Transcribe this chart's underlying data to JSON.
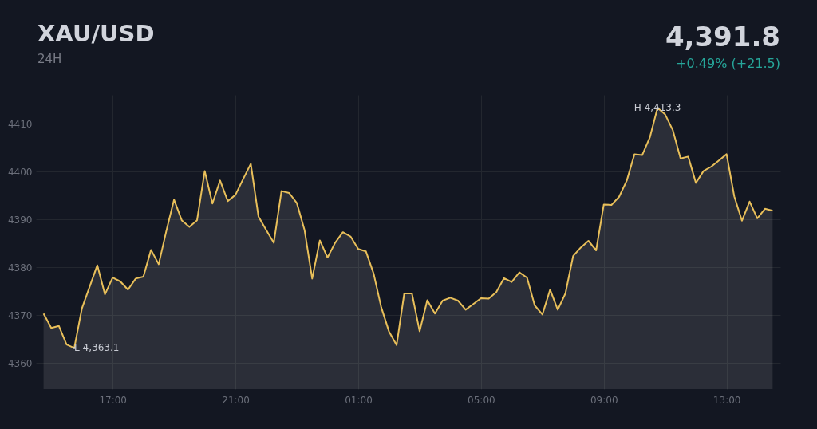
{
  "chart_data": {
    "type": "area",
    "title": "XAU/USD",
    "subtitle": "24H",
    "annotations": [
      "4,391.8",
      "+0.49%  (+21.5)",
      "H 4,413.3",
      "L 4,363.1"
    ],
    "categories": [
      null,
      null,
      null,
      null,
      null,
      null,
      null,
      null,
      null,
      "17:00",
      null,
      null,
      null,
      null,
      null,
      null,
      null,
      null,
      null,
      null,
      null,
      null,
      null,
      null,
      null,
      "21:00",
      null,
      null,
      null,
      null,
      null,
      null,
      null,
      null,
      null,
      null,
      null,
      null,
      null,
      null,
      null,
      "01:00",
      null,
      null,
      null,
      null,
      null,
      null,
      null,
      null,
      null,
      null,
      null,
      null,
      null,
      null,
      null,
      "05:00",
      null,
      null,
      null,
      null,
      null,
      null,
      null,
      null,
      null,
      null,
      null,
      null,
      null,
      null,
      null,
      "09:00",
      null,
      null,
      null,
      null,
      null,
      null,
      null,
      null,
      null,
      null,
      null,
      null,
      null,
      null,
      null,
      "13:00",
      null,
      null,
      null,
      null,
      null,
      null
    ],
    "series": [
      {
        "color": "#e8bf5a",
        "values": [
          4370.3,
          4367.3,
          4367.7,
          4363.8,
          4363.1,
          4371.4,
          4375.9,
          4380.4,
          4374.3,
          4377.8,
          4377.0,
          4375.3,
          4377.6,
          4378.0,
          4383.6,
          4380.6,
          4387.6,
          4394.1,
          4389.8,
          4388.4,
          4389.8,
          4400.1,
          4393.3,
          4398.1,
          4393.8,
          4395.1,
          4398.4,
          4401.6,
          4390.6,
          4387.8,
          4385.1,
          4395.9,
          4395.5,
          4393.4,
          4387.8,
          4377.6,
          4385.6,
          4382.0,
          4385.1,
          4387.3,
          4386.4,
          4383.8,
          4383.3,
          4378.7,
          4371.6,
          4366.6,
          4363.7,
          4374.5,
          4374.5,
          4366.6,
          4373.1,
          4370.3,
          4373.0,
          4373.6,
          4373.0,
          4371.1,
          4372.3,
          4373.5,
          4373.4,
          4374.8,
          4377.7,
          4376.9,
          4378.9,
          4377.8,
          4372.0,
          4370.1,
          4375.3,
          4371.1,
          4374.5,
          4382.3,
          4384.1,
          4385.5,
          4383.5,
          4393.1,
          4393.0,
          4394.7,
          4398.1,
          4403.6,
          4403.4,
          4407.1,
          4413.3,
          4411.9,
          4408.6,
          4402.7,
          4403.1,
          4397.6,
          4400.1,
          4401.0,
          4402.3,
          4403.6,
          4394.8,
          4389.7,
          4393.7,
          4390.2,
          4392.2,
          4391.8
        ]
      }
    ],
    "ylim": [
      4354.5,
      4416
    ],
    "yticks": [
      4360,
      4370,
      4380,
      4390,
      4400,
      4410
    ],
    "grid": true
  }
}
